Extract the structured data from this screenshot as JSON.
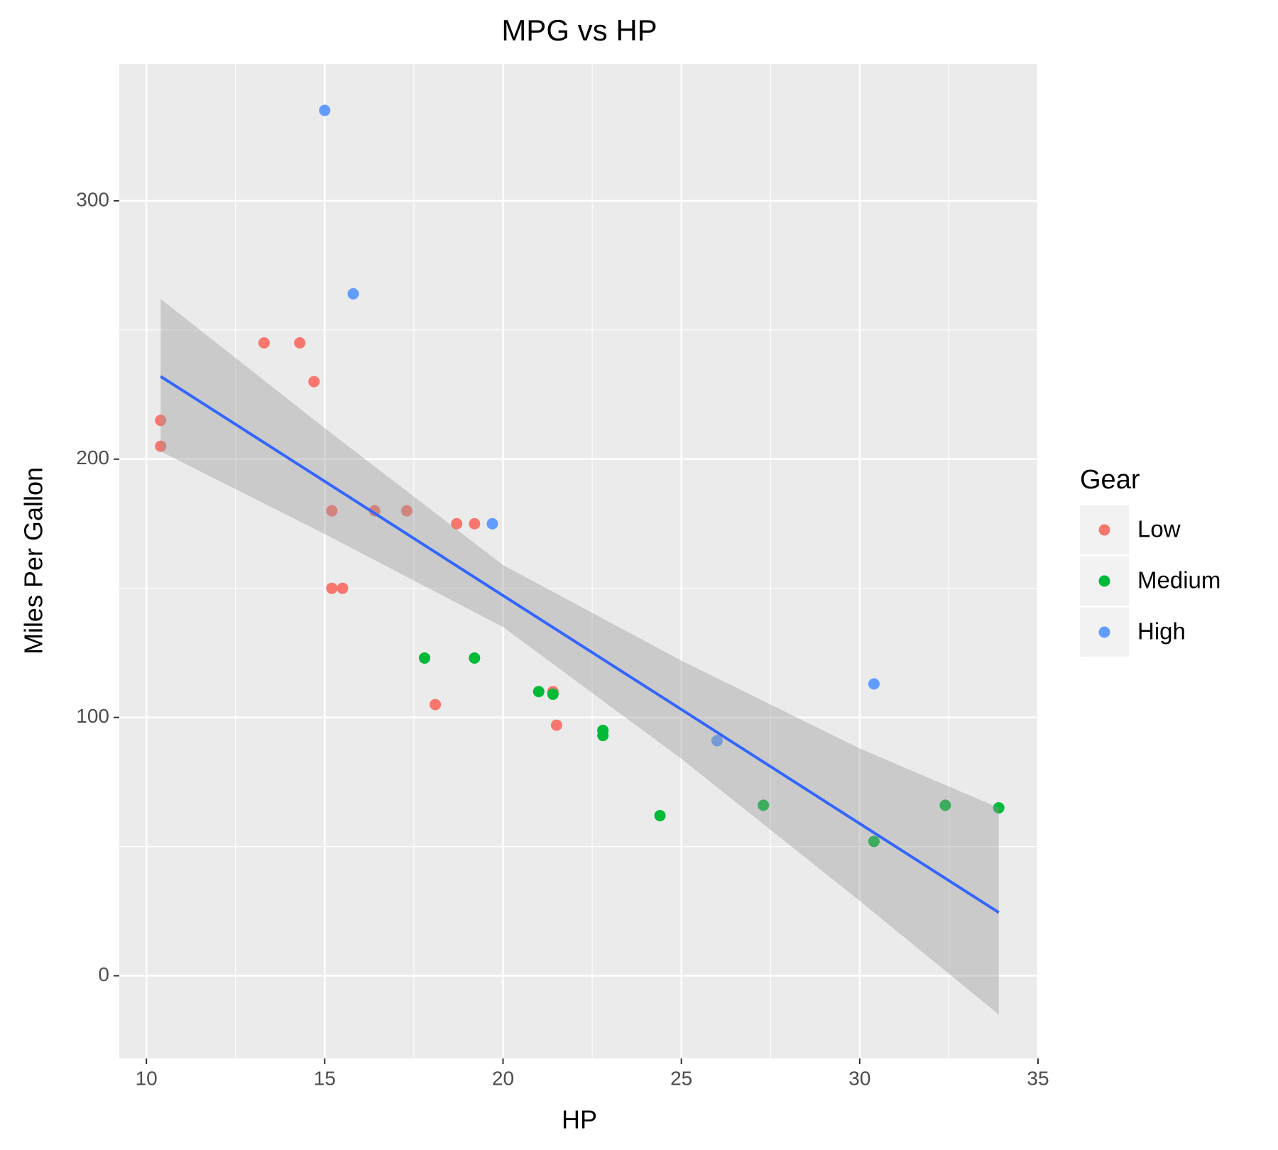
{
  "chart_data": {
    "type": "scatter",
    "title": "MPG vs HP",
    "x_label": "HP",
    "y_label": "Miles Per Gallon",
    "legend_title": "Gear",
    "series": [
      {
        "name": "Low",
        "color": "#F8766D",
        "x": [
          10.4,
          10.4,
          13.3,
          14.3,
          14.7,
          15.2,
          16.4,
          17.3,
          18.7,
          19.2,
          15.2,
          15.5,
          18.1,
          21.4,
          21.5
        ],
        "values": [
          215,
          205,
          245,
          245,
          230,
          180,
          180,
          180,
          175,
          175,
          150,
          150,
          105,
          110,
          97
        ]
      },
      {
        "name": "Medium",
        "color": "#00BA38",
        "x": [
          17.8,
          19.2,
          21.0,
          21.4,
          22.8,
          22.8,
          24.4,
          27.3,
          30.4,
          32.4,
          33.9
        ],
        "values": [
          123,
          123,
          110,
          109,
          95,
          93,
          62,
          66,
          52,
          66,
          65
        ]
      },
      {
        "name": "High",
        "color": "#619CFF",
        "x": [
          15.0,
          15.8,
          19.7,
          30.4,
          26.0
        ],
        "values": [
          335,
          264,
          175,
          113,
          91
        ]
      }
    ],
    "smooth": {
      "color": "#3366FF",
      "band_color": "#999999",
      "x": [
        10.4,
        15,
        20,
        25,
        30,
        33.9
      ],
      "values": [
        232,
        191.4,
        147.2,
        103.1,
        58.9,
        24.5
      ],
      "ymin": [
        203,
        171,
        135,
        84,
        29,
        -15
      ],
      "ymax": [
        262,
        212,
        159,
        122,
        88,
        65
      ]
    },
    "xlim": [
      9.24,
      35.02
    ],
    "xticks": [
      10,
      15,
      20,
      25,
      30,
      35
    ],
    "x_minor_grid": [
      12.5,
      17.5,
      22.5,
      27.5,
      32.5
    ],
    "ylim": [
      -32,
      353
    ],
    "yticks": [
      0,
      100,
      200,
      300
    ],
    "y_minor_grid": [
      50,
      150,
      250
    ],
    "grid": true,
    "legend": "right"
  }
}
